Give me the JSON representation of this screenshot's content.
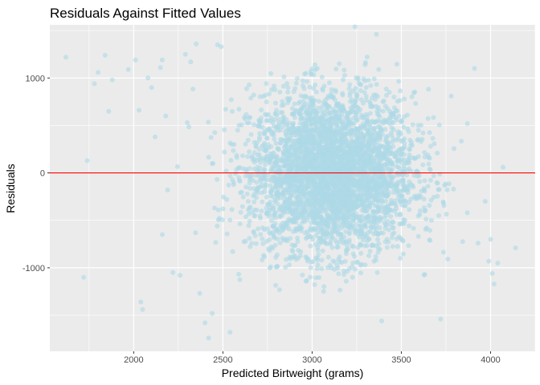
{
  "chart_data": {
    "type": "scatter",
    "title": "Residuals Against Fitted Values",
    "xlabel": "Predicted Birtweight (grams)",
    "ylabel": "Residuals",
    "xlim": [
      1530,
      4250
    ],
    "ylim": [
      -1880,
      1560
    ],
    "xticks": [
      2000,
      2500,
      3000,
      3500,
      4000
    ],
    "yticks": [
      -1000,
      0,
      1000
    ],
    "x_tick_labels": [
      "2000",
      "2500",
      "3000",
      "3500",
      "4000"
    ],
    "y_tick_labels": [
      "-1000",
      "0",
      "1000"
    ],
    "grid": true,
    "point_color": "#add8e6",
    "point_opacity": 0.6,
    "reference_line": {
      "y": 0,
      "color": "#ff0000"
    },
    "panel_background": "#ebebeb",
    "grid_color": "#ffffff",
    "outliers": [
      {
        "x": 1620,
        "y": 1220
      },
      {
        "x": 1720,
        "y": -1100
      },
      {
        "x": 1740,
        "y": 130
      },
      {
        "x": 1780,
        "y": 940
      },
      {
        "x": 1800,
        "y": 1060
      },
      {
        "x": 1840,
        "y": 1240
      },
      {
        "x": 1860,
        "y": 650
      },
      {
        "x": 1880,
        "y": 980
      },
      {
        "x": 1970,
        "y": 1090
      },
      {
        "x": 2010,
        "y": 1190
      },
      {
        "x": 2030,
        "y": 660
      },
      {
        "x": 2040,
        "y": -1360
      },
      {
        "x": 2050,
        "y": -1440
      },
      {
        "x": 2080,
        "y": 1000
      },
      {
        "x": 2100,
        "y": 900
      },
      {
        "x": 2120,
        "y": 380
      },
      {
        "x": 2150,
        "y": 1110
      },
      {
        "x": 2160,
        "y": 1190
      },
      {
        "x": 2160,
        "y": -650
      },
      {
        "x": 2180,
        "y": 600
      },
      {
        "x": 2190,
        "y": -180
      },
      {
        "x": 2220,
        "y": -1050
      },
      {
        "x": 2260,
        "y": -1080
      },
      {
        "x": 2290,
        "y": 1250
      },
      {
        "x": 2300,
        "y": 530
      },
      {
        "x": 2320,
        "y": 1170
      },
      {
        "x": 2350,
        "y": 1360
      },
      {
        "x": 2370,
        "y": -1270
      },
      {
        "x": 2400,
        "y": -1580
      },
      {
        "x": 2420,
        "y": -1740
      },
      {
        "x": 2440,
        "y": -1480
      },
      {
        "x": 2470,
        "y": 1350
      },
      {
        "x": 2490,
        "y": 1330
      },
      {
        "x": 2540,
        "y": -1680
      },
      {
        "x": 3240,
        "y": 1540
      },
      {
        "x": 3360,
        "y": 1460
      },
      {
        "x": 3390,
        "y": -1560
      },
      {
        "x": 3720,
        "y": -1540
      },
      {
        "x": 3780,
        "y": 810
      },
      {
        "x": 3870,
        "y": 520
      },
      {
        "x": 3910,
        "y": 1100
      },
      {
        "x": 3930,
        "y": -740
      },
      {
        "x": 3970,
        "y": -300
      },
      {
        "x": 3990,
        "y": -930
      },
      {
        "x": 4000,
        "y": -700
      },
      {
        "x": 4010,
        "y": -1060
      },
      {
        "x": 4020,
        "y": -1170
      },
      {
        "x": 4040,
        "y": -950
      },
      {
        "x": 4070,
        "y": 60
      },
      {
        "x": 4140,
        "y": -790
      }
    ],
    "bulk_cloud": {
      "approx_points": 3900,
      "x_center": 3110,
      "x_sd": 230,
      "y_center": 0,
      "y_sd": 420,
      "x_range": [
        2200,
        3950
      ],
      "y_range": [
        -1250,
        1300
      ]
    }
  }
}
